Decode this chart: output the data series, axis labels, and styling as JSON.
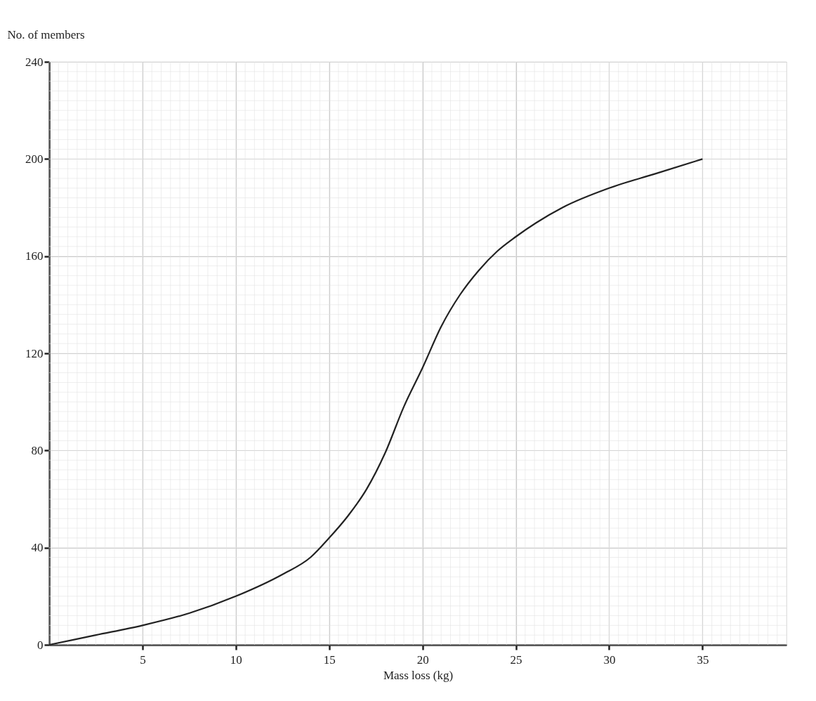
{
  "chart_data": {
    "type": "line",
    "xlabel": "Mass loss (kg)",
    "ylabel": "No. of members",
    "x": [
      0,
      2.5,
      5,
      7.5,
      10,
      12.5,
      14,
      15,
      16,
      17,
      18,
      19,
      20,
      21,
      22,
      23,
      24,
      25,
      27.5,
      30,
      32.5,
      35
    ],
    "series": [
      {
        "color": "#222222",
        "values": [
          0,
          4,
          8,
          13,
          20,
          29,
          36,
          44,
          53,
          64,
          79,
          98,
          114,
          131,
          144,
          154,
          162,
          168,
          180,
          188,
          194,
          200
        ]
      }
    ],
    "xlim": [
      0,
      39.5
    ],
    "xticks": [
      5,
      10,
      15,
      20,
      25,
      30,
      35
    ],
    "ylim": [
      0,
      240
    ],
    "yticks": [
      0,
      40,
      80,
      120,
      160,
      200,
      240
    ],
    "grid": true,
    "marker": "none",
    "line_style": "solid"
  }
}
